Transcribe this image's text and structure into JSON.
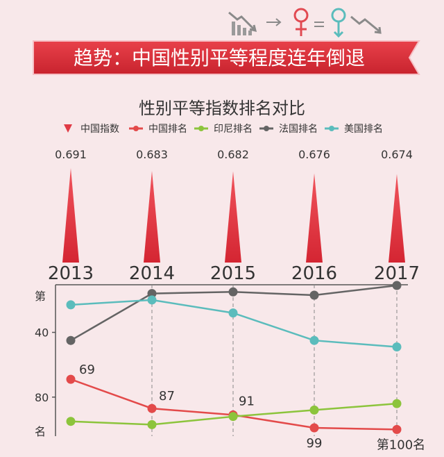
{
  "banner": {
    "title": "趋势：中国性别平等程度连年倒退"
  },
  "chart_data": {
    "type": "line",
    "title": "性别平等指数排名对比",
    "legend_position": "top",
    "categories": [
      "2013",
      "2014",
      "2015",
      "2016",
      "2017"
    ],
    "index_series": {
      "name": "中国指数",
      "values": [
        0.691,
        0.683,
        0.682,
        0.676,
        0.674
      ],
      "color": "#e03a45",
      "labels": [
        "0.691",
        "0.683",
        "0.682",
        "0.676",
        "0.674"
      ]
    },
    "rank_series": [
      {
        "name": "中国排名",
        "color": "#e34a4a",
        "values": [
          69,
          87,
          91,
          99,
          100
        ]
      },
      {
        "name": "印尼排名",
        "color": "#8cc43c",
        "values": [
          95,
          97,
          92,
          88,
          84
        ]
      },
      {
        "name": "法国排名",
        "color": "#646464",
        "values": [
          45,
          16,
          15,
          17,
          11
        ]
      },
      {
        "name": "美国排名",
        "color": "#5bbcbc",
        "values": [
          23,
          20,
          28,
          45,
          49
        ]
      }
    ],
    "rank_labels": [
      "69",
      "87",
      "91",
      "99",
      "第100名"
    ],
    "y_axis": {
      "top_label": "第",
      "bottom_label": "名",
      "ticks": [
        "40",
        "80"
      ],
      "reversed": true,
      "ylim": [
        5,
        105
      ]
    },
    "grid": false
  }
}
